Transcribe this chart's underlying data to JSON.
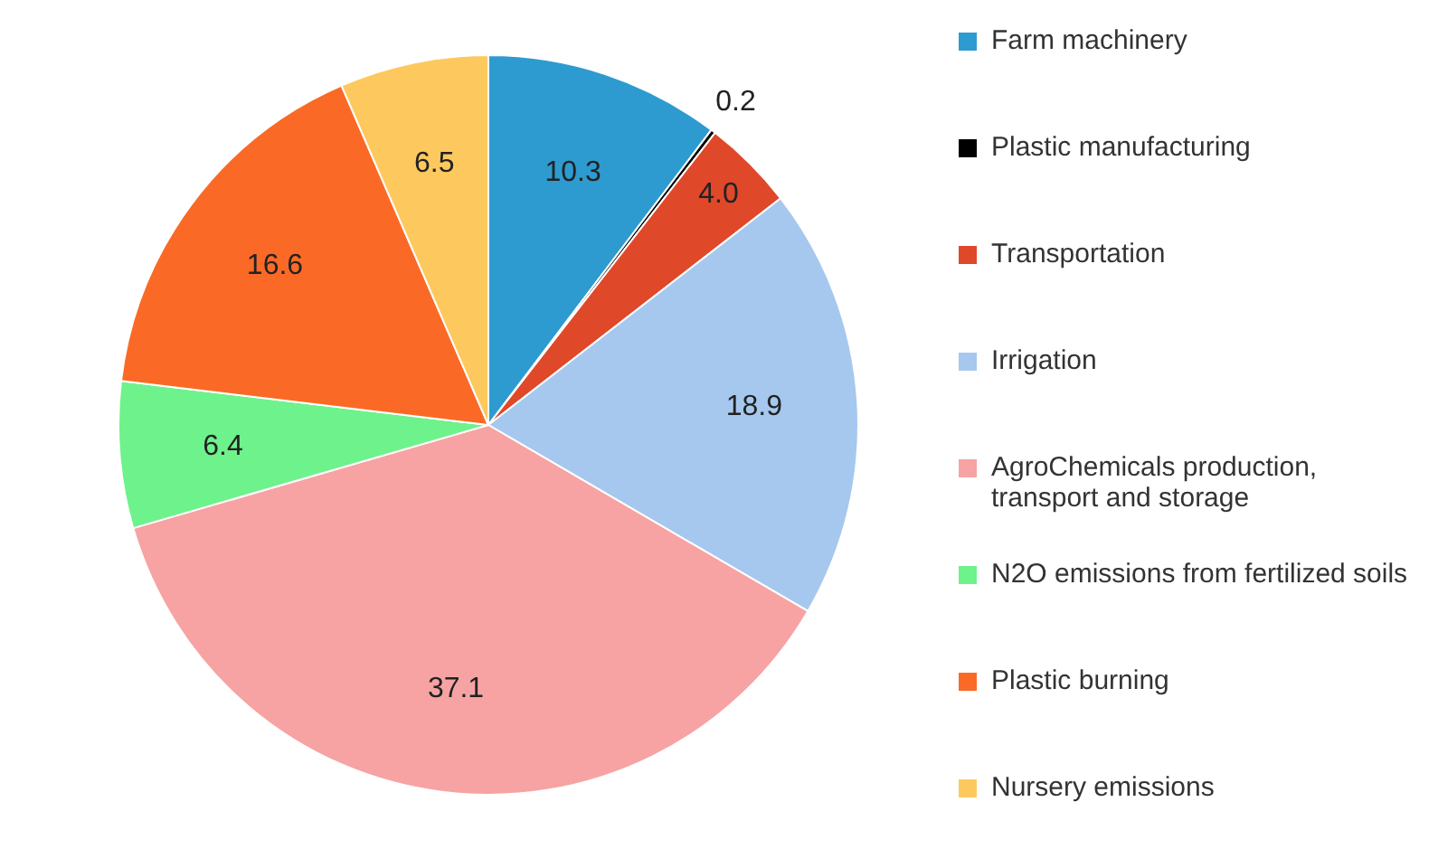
{
  "chart_data": {
    "type": "pie",
    "categories": [
      "Farm machinery",
      "Plastic manufacturing",
      "Transportation",
      "Irrigation",
      "AgroChemicals production, transport and storage",
      "N2O emissions from fertilized soils",
      "Plastic burning",
      "Nursery emissions"
    ],
    "values": [
      10.3,
      0.2,
      4.0,
      18.9,
      37.1,
      6.4,
      16.6,
      6.5
    ],
    "value_labels": [
      "10.3",
      "0.2",
      "4.0",
      "18.9",
      "37.1",
      "6.4",
      "16.6",
      "6.5"
    ],
    "colors": [
      "#2e9bd0",
      "#000000",
      "#e0482a",
      "#a6c8ee",
      "#f7a3a3",
      "#6ef28c",
      "#fa6a26",
      "#fdc95e"
    ],
    "legend": "right"
  }
}
